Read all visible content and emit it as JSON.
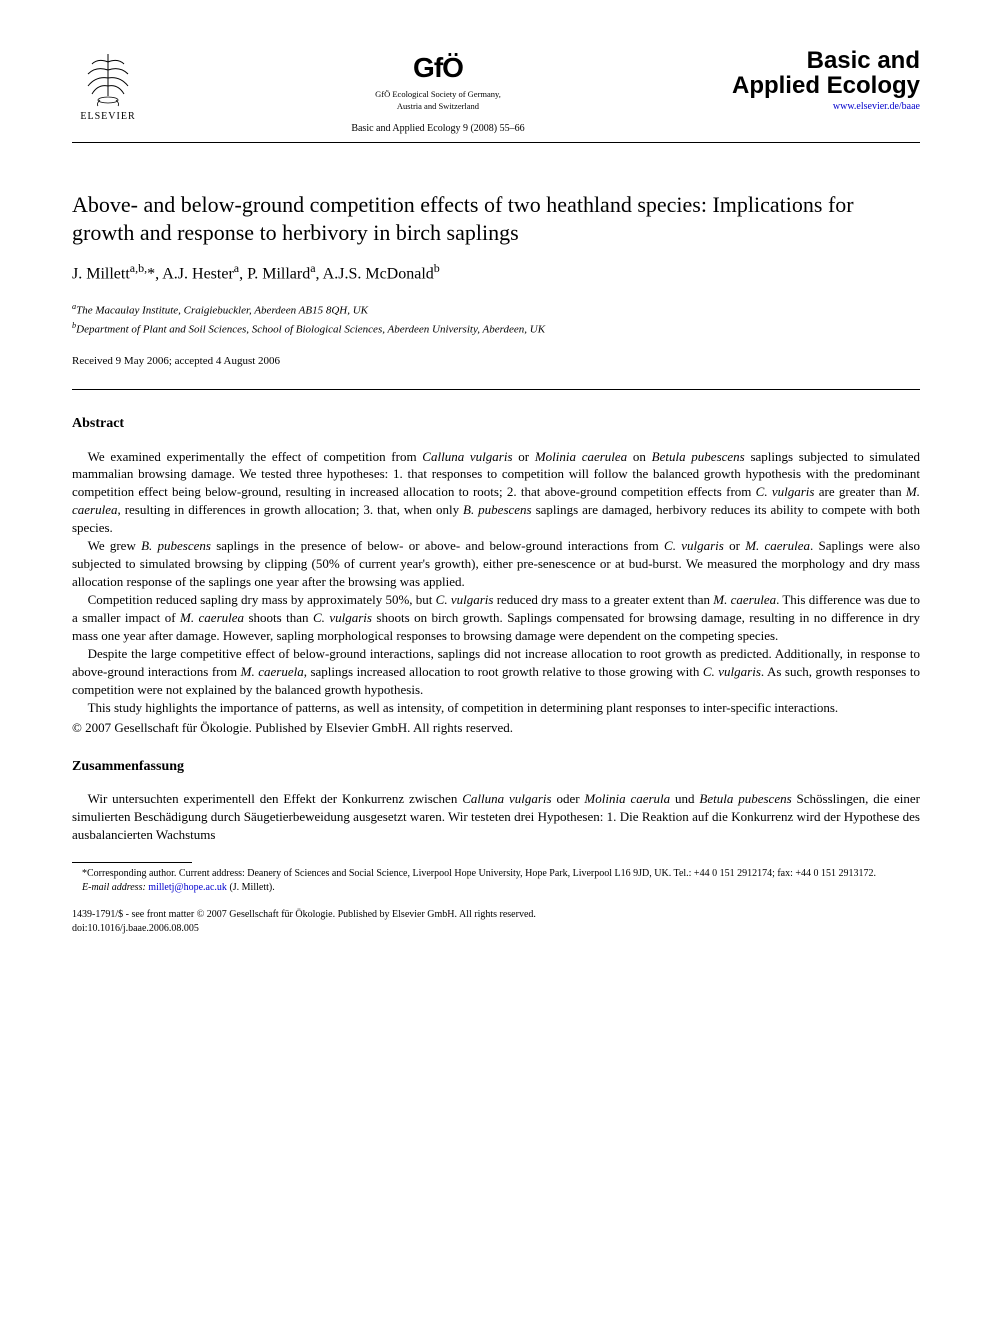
{
  "header": {
    "elsevier_label": "ELSEVIER",
    "gfo_logo": "GfÖ",
    "gfo_sub1": "GfÖ Ecological Society of Germany,",
    "gfo_sub2": "Austria and Switzerland",
    "journal_ref": "Basic and Applied Ecology 9 (2008) 55–66",
    "journal_title_1": "Basic and",
    "journal_title_2": "Applied Ecology",
    "journal_url": "www.elsevier.de/baae"
  },
  "article": {
    "title": "Above- and below-ground competition effects of two heathland species: Implications for growth and response to herbivory in birch saplings",
    "authors_html": "J. Millett<sup>a,b,</sup>*, A.J. Hester<sup>a</sup>, P. Millard<sup>a</sup>, A.J.S. McDonald<sup>b</sup>",
    "affil_a": "The Macaulay Institute, Craigiebuckler, Aberdeen AB15 8QH, UK",
    "affil_b": "Department of Plant and Soil Sciences, School of Biological Sciences, Aberdeen University, Aberdeen, UK",
    "dates": "Received 9 May 2006; accepted 4 August 2006"
  },
  "abstract": {
    "heading": "Abstract",
    "p1_pre": "We examined experimentally the effect of competition from ",
    "p1_sp1": "Calluna vulgaris",
    "p1_mid1": " or ",
    "p1_sp2": "Molinia caerulea",
    "p1_mid2": " on ",
    "p1_sp3": "Betula pubescens",
    "p1_post1": " saplings subjected to simulated mammalian browsing damage. We tested three hypotheses: 1. that responses to competition will follow the balanced growth hypothesis with the predominant competition effect being below-ground, resulting in increased allocation to roots; 2. that above-ground competition effects from ",
    "p1_sp4": "C. vulgaris",
    "p1_mid3": " are greater than ",
    "p1_sp5": "M. caerulea",
    "p1_mid4": ", resulting in differences in growth allocation; 3. that, when only ",
    "p1_sp6": "B. pubescens",
    "p1_post2": " saplings are damaged, herbivory reduces its ability to compete with both species.",
    "p2_pre": "We grew ",
    "p2_sp1": "B. pubescens",
    "p2_mid1": " saplings in the presence of below- or above- and below-ground interactions from ",
    "p2_sp2": "C. vulgaris",
    "p2_mid2": " or ",
    "p2_sp3": "M. caerulea",
    "p2_post": ". Saplings were also subjected to simulated browsing by clipping (50% of current year's growth), either pre-senescence or at bud-burst. We measured the morphology and dry mass allocation response of the saplings one year after the browsing was applied.",
    "p3_pre": "Competition reduced sapling dry mass by approximately 50%, but ",
    "p3_sp1": "C. vulgaris",
    "p3_mid1": " reduced dry mass to a greater extent than ",
    "p3_sp2": "M. caerulea",
    "p3_mid2": ". This difference was due to a smaller impact of ",
    "p3_sp3": "M. caerulea",
    "p3_mid3": " shoots than ",
    "p3_sp4": "C. vulgaris",
    "p3_post": " shoots on birch growth. Saplings compensated for browsing damage, resulting in no difference in dry mass one year after damage. However, sapling morphological responses to browsing damage were dependent on the competing species.",
    "p4_pre": "Despite the large competitive effect of below-ground interactions, saplings did not increase allocation to root growth as predicted. Additionally, in response to above-ground interactions from ",
    "p4_sp1": "M. caeruela",
    "p4_mid1": ", saplings increased allocation to root growth relative to those growing with ",
    "p4_sp2": "C. vulgaris",
    "p4_post": ". As such, growth responses to competition were not explained by the balanced growth hypothesis.",
    "p5": "This study highlights the importance of patterns, as well as intensity, of competition in determining plant responses to inter-specific interactions.",
    "copyright": "© 2007 Gesellschaft für Ökologie. Published by Elsevier GmbH. All rights reserved."
  },
  "zusammen": {
    "heading": "Zusammenfassung",
    "p1_pre": "Wir untersuchten experimentell den Effekt der Konkurrenz zwischen ",
    "p1_sp1": "Calluna vulgaris",
    "p1_mid1": " oder ",
    "p1_sp2": "Molinia caerula",
    "p1_mid2": " und ",
    "p1_sp3": "Betula pubescens",
    "p1_post": " Schösslingen, die einer simulierten Beschädigung durch Säugetierbeweidung ausgesetzt waren. Wir testeten drei Hypothesen: 1. Die Reaktion auf die Konkurrenz wird der Hypothese des ausbalancierten Wachstums"
  },
  "footnote": {
    "corr": "*Corresponding author. Current address: Deanery of Sciences and Social Science, Liverpool Hope University, Hope Park, Liverpool L16 9JD, UK. Tel.: +44 0 151 2912174; fax: +44 0 151 2913172.",
    "email_label": "E-mail address:",
    "email": "milletj@hope.ac.uk",
    "email_name": "(J. Millett)."
  },
  "bottom": {
    "line1": "1439-1791/$ - see front matter © 2007 Gesellschaft für Ökologie. Published by Elsevier GmbH. All rights reserved.",
    "line2": "doi:10.1016/j.baae.2006.08.005"
  },
  "colors": {
    "text": "#000000",
    "background": "#ffffff",
    "link": "#0000cc"
  }
}
